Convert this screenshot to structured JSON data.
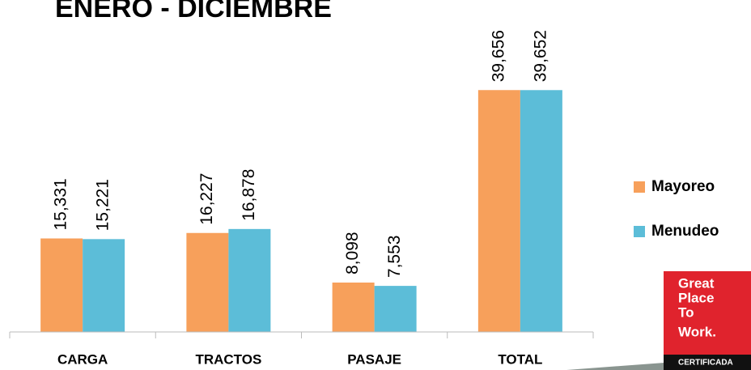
{
  "chart_data": {
    "type": "bar",
    "title": "ENERO - DICIEMBRE",
    "categories": [
      "CARGA",
      "TRACTOS",
      "PASAJE",
      "TOTAL"
    ],
    "series": [
      {
        "name": "Mayoreo",
        "color": "#f7a05b",
        "values": [
          15331,
          16227,
          8098,
          39656
        ],
        "value_labels": [
          "15,331",
          "16,227",
          "8,098",
          "39,656"
        ]
      },
      {
        "name": "Menudeo",
        "color": "#5cbdd8",
        "values": [
          15221,
          16878,
          7553,
          39652
        ],
        "value_labels": [
          "15,221",
          "16,878",
          "7,553",
          "39,652"
        ]
      }
    ],
    "ylim": [
      0,
      45000
    ],
    "legend": "right"
  },
  "badge": {
    "lines": [
      "Great",
      "Place",
      "To",
      "Work."
    ],
    "certified": "CERTIFICADA"
  }
}
